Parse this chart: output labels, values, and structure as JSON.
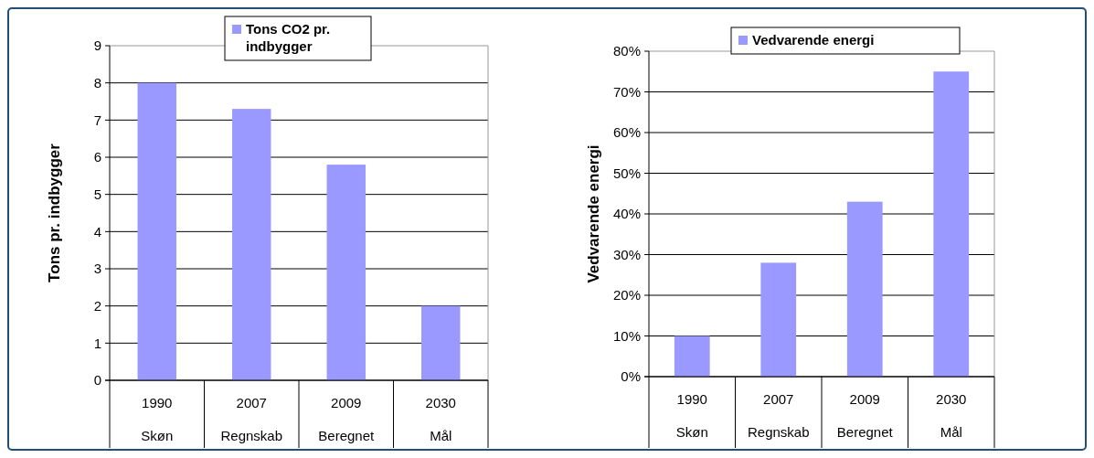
{
  "chart_data": [
    {
      "type": "bar",
      "ylabel": "Tons pr. indbygger",
      "categories": [
        "1990\nSkøn",
        "2007\nRegnskab",
        "2009\nBeregnet",
        "2030\nMål"
      ],
      "series": [
        {
          "name": "Tons CO2 pr. indbygger",
          "color": "#9999ff",
          "values": [
            8,
            7.3,
            5.8,
            2
          ]
        }
      ],
      "ylim": [
        0,
        9
      ],
      "yticks": [
        0,
        1,
        2,
        3,
        4,
        5,
        6,
        7,
        8,
        9
      ],
      "grid": "y",
      "legend": "top"
    },
    {
      "type": "bar",
      "ylabel": "Vedvarende energi",
      "categories": [
        "1990\nSkøn",
        "2007\nRegnskab",
        "2009\nBeregnet",
        "2030\nMål"
      ],
      "series": [
        {
          "name": "Vedvarende energi",
          "color": "#9999ff",
          "values": [
            10,
            28,
            43,
            75
          ]
        }
      ],
      "ylim": [
        0,
        80
      ],
      "yticks": [
        {
          "value": 0,
          "label": "0%"
        },
        {
          "value": 10,
          "label": "10%"
        },
        {
          "value": 20,
          "label": "20%"
        },
        {
          "value": 30,
          "label": "30%"
        },
        {
          "value": 40,
          "label": "40%"
        },
        {
          "value": 50,
          "label": "50%"
        },
        {
          "value": 60,
          "label": "60%"
        },
        {
          "value": 70,
          "label": "70%"
        },
        {
          "value": 80,
          "label": "80%"
        }
      ],
      "grid": "y",
      "legend": "top"
    }
  ]
}
